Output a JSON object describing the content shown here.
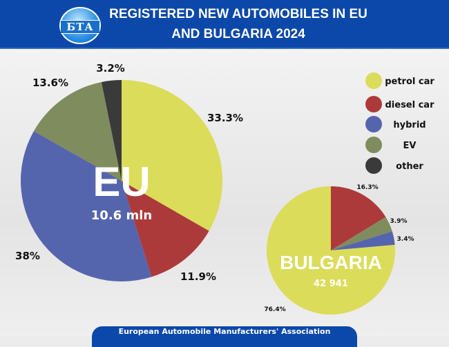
{
  "header": {
    "title_line1": "REGISTERED NEW AUTOMOBILES IN EU",
    "title_line2": "AND BULGARIA 2024",
    "logo_text": "БТА"
  },
  "footer": {
    "source": "European Automobile Manufacturers' Association"
  },
  "colors": {
    "petrol car": "#dbdc5a",
    "diesel car": "#ad3a3a",
    "hybrid": "#5565ad",
    "EV": "#7f8c5e",
    "other": "#3a3a3a",
    "header": "#0b48a9"
  },
  "chart_data": [
    {
      "type": "pie",
      "title": "EU",
      "subtitle": "10.6 mln",
      "legend": [
        "petrol car",
        "diesel car",
        "hybrid",
        "EV",
        "other"
      ],
      "legend_position": "right",
      "slices": [
        {
          "name": "petrol car",
          "value": 33.3,
          "label": "33.3%"
        },
        {
          "name": "diesel car",
          "value": 11.9,
          "label": "11.9%"
        },
        {
          "name": "hybrid",
          "value": 38,
          "label": "38%"
        },
        {
          "name": "EV",
          "value": 13.6,
          "label": "13.6%"
        },
        {
          "name": "other",
          "value": 3.2,
          "label": "3.2%"
        }
      ]
    },
    {
      "type": "pie",
      "title": "BULGARIA",
      "subtitle": "42 941",
      "slices": [
        {
          "name": "diesel car",
          "value": 16.3,
          "label": "16.3%"
        },
        {
          "name": "EV",
          "value": 3.9,
          "label": "3.9%"
        },
        {
          "name": "hybrid",
          "value": 3.4,
          "label": "3.4%"
        },
        {
          "name": "petrol car",
          "value": 76.4,
          "label": "76.4%"
        }
      ]
    }
  ]
}
